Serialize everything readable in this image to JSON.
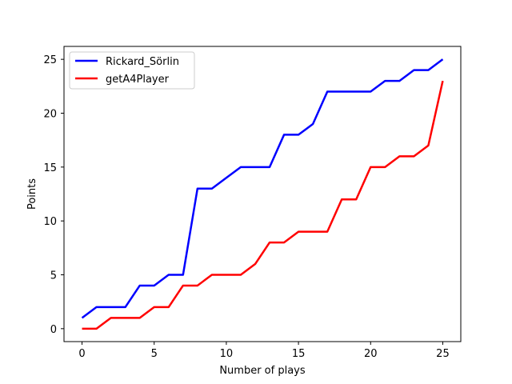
{
  "chart_data": {
    "type": "line",
    "title": "",
    "xlabel": "Number of plays",
    "ylabel": "Points",
    "xlim": [
      -1.25,
      26.25
    ],
    "ylim": [
      -1.2,
      26.2
    ],
    "xticks": [
      0,
      5,
      10,
      15,
      20,
      25
    ],
    "yticks": [
      0,
      5,
      10,
      15,
      20,
      25
    ],
    "grid": false,
    "legend_position": "upper left",
    "x": [
      0,
      1,
      2,
      3,
      4,
      5,
      6,
      7,
      8,
      9,
      10,
      11,
      12,
      13,
      14,
      15,
      16,
      17,
      18,
      19,
      20,
      21,
      22,
      23,
      24,
      25
    ],
    "series": [
      {
        "name": "Rickard_Sörlin",
        "color": "#0000ff",
        "values": [
          1,
          2,
          2,
          2,
          4,
          4,
          5,
          5,
          13,
          13,
          14,
          15,
          15,
          15,
          18,
          18,
          19,
          22,
          22,
          22,
          22,
          23,
          23,
          24,
          24,
          25
        ]
      },
      {
        "name": "getA4Player",
        "color": "#ff0000",
        "values": [
          0,
          0,
          1,
          1,
          1,
          2,
          2,
          4,
          4,
          5,
          5,
          5,
          6,
          8,
          8,
          9,
          9,
          9,
          12,
          12,
          15,
          15,
          16,
          16,
          17,
          23
        ]
      }
    ]
  }
}
